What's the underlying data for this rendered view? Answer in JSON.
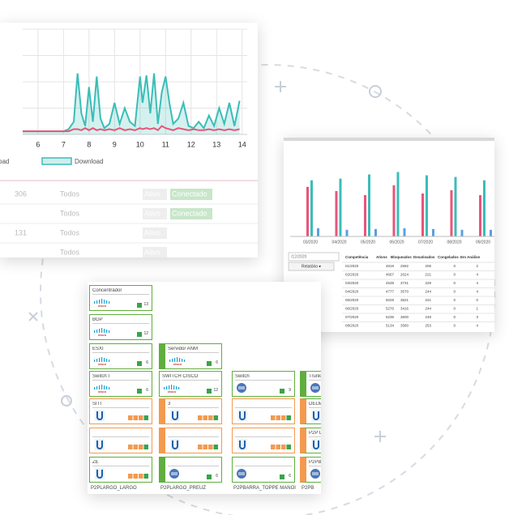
{
  "traffic": {
    "xticks": [
      6,
      7,
      8,
      9,
      10,
      11,
      12,
      13,
      14
    ],
    "xlim": [
      5.4,
      14.2
    ],
    "ylim": [
      0,
      100
    ],
    "grid": true,
    "x": [
      5.4,
      6.5,
      7.0,
      7.2,
      7.4,
      7.55,
      7.7,
      7.85,
      8.0,
      8.15,
      8.3,
      8.45,
      8.6,
      8.8,
      9.0,
      9.2,
      9.4,
      9.6,
      9.8,
      10.0,
      10.1,
      10.25,
      10.4,
      10.55,
      10.7,
      10.85,
      11.0,
      11.15,
      11.3,
      11.5,
      11.7,
      11.9,
      12.1,
      12.3,
      12.5,
      12.7,
      12.9,
      13.1,
      13.3,
      13.5,
      13.7,
      13.9
    ],
    "series": [
      {
        "name": "Upload",
        "color": "#e8557a",
        "values": [
          3,
          3,
          3,
          3,
          5,
          5,
          4,
          6,
          4,
          6,
          4,
          5,
          4,
          5,
          4,
          6,
          4,
          5,
          4,
          6,
          5,
          6,
          5,
          6,
          4,
          8,
          6,
          5,
          4,
          6,
          5,
          4,
          5,
          4,
          4,
          5,
          4,
          5,
          4,
          5,
          4,
          5
        ]
      },
      {
        "name": "Download",
        "color": "#3bbdb8",
        "values": [
          3,
          3,
          3,
          5,
          12,
          58,
          20,
          8,
          45,
          12,
          55,
          15,
          6,
          10,
          30,
          10,
          25,
          12,
          8,
          55,
          30,
          56,
          20,
          58,
          10,
          40,
          55,
          30,
          10,
          15,
          30,
          8,
          6,
          12,
          6,
          18,
          8,
          25,
          10,
          30,
          8,
          32
        ]
      }
    ],
    "rows": [
      [
        "306",
        "Todos",
        "Ativo",
        "Conectado"
      ],
      [
        null,
        "Todos",
        "Ativo",
        "Conectado"
      ],
      [
        "131",
        "Todos",
        "Ativo",
        null
      ],
      [
        null,
        "Todos",
        "Ativo",
        null
      ],
      [
        null,
        "Todos",
        null,
        null
      ]
    ]
  },
  "subscribers": {
    "categories": [
      "03/2020",
      "04/2020",
      "05/2020",
      "06/2020",
      "07/2020",
      "08/2020",
      "09/2020"
    ],
    "ylim": [
      0,
      100
    ],
    "series": [
      {
        "color": "#e8557a",
        "values": [
          60,
          55,
          50,
          62,
          52,
          56,
          50
        ]
      },
      {
        "color": "#3bbdb8",
        "values": [
          68,
          70,
          75,
          78,
          74,
          72,
          68
        ]
      },
      {
        "color": "#5aa0e0",
        "values": [
          10,
          8,
          9,
          10,
          9,
          8,
          8
        ]
      }
    ],
    "date_input": "/12/2020",
    "button": "Relatório ▾",
    "table": {
      "header": [
        "Competência",
        "Ativos",
        "Bloqueados",
        "Desativados",
        "Congelados",
        "Em Análise"
      ],
      "rows": [
        [
          "01/2020",
          4819,
          2592,
          205,
          0,
          2
        ],
        [
          "02/2020",
          4667,
          2624,
          221,
          0,
          4
        ],
        [
          "03/2020",
          4539,
          3731,
          229,
          0,
          4
        ],
        [
          "04/2020",
          4777,
          3570,
          244,
          0,
          4
        ],
        [
          "05/2020",
          5028,
          3621,
          241,
          0,
          0
        ],
        [
          "06/2020",
          5276,
          3416,
          244,
          0,
          1
        ],
        [
          "07/2020",
          5236,
          3600,
          248,
          0,
          3
        ],
        [
          "08/2020",
          5134,
          3580,
          253,
          0,
          4
        ]
      ]
    }
  },
  "network": {
    "brand_text": "cisco",
    "rows": [
      [
        {
          "label": "Concentrador",
          "count": 13,
          "icon": "cisco"
        }
      ],
      [
        {
          "label": "BGP",
          "count": 12,
          "icon": "cisco"
        }
      ],
      [
        {
          "label": "ESXI",
          "count": 6,
          "icon": "cisco"
        },
        {
          "label": "Servidor ANM",
          "count": 6,
          "icon": "cisco",
          "strip": "green"
        }
      ],
      [
        {
          "label": "Switch I",
          "count": 6,
          "icon": "cisco"
        },
        {
          "label": "SWITCH CISCO",
          "count": 12,
          "icon": "cisco"
        },
        {
          "label": "Switch",
          "count": 9,
          "icon": "switch"
        },
        {
          "label": "Trunk",
          "icon": "switch",
          "strip": "green"
        }
      ],
      [
        {
          "label": "SITI",
          "icon": "ubiquiti",
          "border": "orange"
        },
        {
          "label": "3",
          "icon": "ubiquiti",
          "border": "orange",
          "strip": "orange"
        },
        {
          "icon": "ubiquiti",
          "border": "orange"
        },
        {
          "label": "DELMA",
          "icon": "ubiquiti",
          "strip": "orange"
        }
      ],
      [
        {
          "icon": "ubiquiti",
          "border": "orange"
        },
        {
          "icon": "ubiquiti",
          "border": "orange",
          "strip": "orange"
        },
        {
          "icon": "ubiquiti",
          "border": "orange"
        },
        {
          "label": "P2P DI",
          "icon": "ubiquiti",
          "strip": "orange"
        }
      ],
      [
        {
          "label": "ZE",
          "icon": "ubiquiti"
        },
        {
          "count": 6,
          "icon": "switch",
          "strip": "green"
        },
        {
          "count": 6,
          "icon": "switch"
        },
        {
          "label": "P2PB",
          "icon": "switch",
          "strip": "orange"
        }
      ]
    ],
    "footer": [
      "P2PLARGO_LARGO",
      "P2PLARGO_PREUZ",
      "P2PBARRA_TOPPE MANOI",
      "P2PB"
    ]
  }
}
